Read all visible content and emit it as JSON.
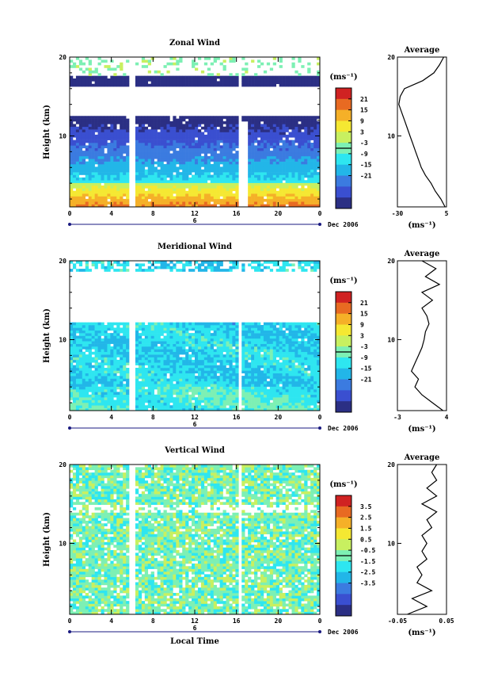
{
  "chart_data": [
    {
      "type": "heatmap",
      "title": "Zonal Wind",
      "ylabel": "Height (km)",
      "x_ticks": [
        "0",
        "4",
        "8",
        "12",
        "16",
        "20",
        "0"
      ],
      "y_ticks": [
        "10",
        "20"
      ],
      "date_label": "6",
      "date_right": "Dec 2006",
      "xlim": [
        0,
        24
      ],
      "ylim": [
        1,
        20
      ],
      "colorbar": {
        "unit": "(ms⁻¹)",
        "ticks": [
          "21",
          "15",
          "9",
          "3",
          "-3",
          "-9",
          "-15",
          "-21"
        ],
        "range": [
          -24,
          24
        ]
      },
      "profile": {
        "title": "Average",
        "unit": "(ms⁻¹)",
        "x_ticks": [
          "-30",
          "5"
        ],
        "xlim": [
          -30,
          5
        ],
        "y_ticks": [
          "10",
          "20"
        ],
        "heights": [
          1,
          2,
          3,
          4,
          5,
          6,
          7,
          8,
          9,
          10,
          11,
          12,
          13,
          14,
          15,
          16,
          17,
          18,
          19,
          20
        ],
        "values": [
          4,
          1,
          -3,
          -6,
          -10,
          -13,
          -15,
          -17,
          -19,
          -21,
          -23,
          -25,
          -27,
          -29,
          -28,
          -25,
          -12,
          -4,
          0,
          3
        ]
      }
    },
    {
      "type": "heatmap",
      "title": "Meridional Wind",
      "ylabel": "Height (km)",
      "x_ticks": [
        "0",
        "4",
        "8",
        "12",
        "16",
        "20",
        "0"
      ],
      "y_ticks": [
        "10",
        "20"
      ],
      "date_label": "6",
      "date_right": "Dec 2006",
      "xlim": [
        0,
        24
      ],
      "ylim": [
        1,
        20
      ],
      "colorbar": {
        "unit": "(ms⁻¹)",
        "ticks": [
          "21",
          "15",
          "9",
          "3",
          "-3",
          "-9",
          "-15",
          "-21"
        ],
        "range": [
          -24,
          24
        ]
      },
      "profile": {
        "title": "Average",
        "unit": "(ms⁻¹)",
        "x_ticks": [
          "-3",
          "4"
        ],
        "xlim": [
          -3,
          4
        ],
        "y_ticks": [
          "10",
          "20"
        ],
        "heights": [
          1,
          2,
          3,
          4,
          5,
          6,
          7,
          8,
          9,
          10,
          11,
          12,
          13,
          14,
          15,
          16,
          17,
          18,
          19,
          20
        ],
        "values": [
          3.5,
          2,
          0.5,
          -0.5,
          0,
          -1,
          -0.5,
          0,
          0.5,
          0.8,
          1,
          1.5,
          1.2,
          0.5,
          2,
          0.5,
          3,
          1,
          2.5,
          0.5
        ]
      }
    },
    {
      "type": "heatmap",
      "title": "Vertical Wind",
      "xlabel": "Local Time",
      "ylabel": "Height (km)",
      "x_ticks": [
        "0",
        "4",
        "8",
        "12",
        "16",
        "20",
        "0"
      ],
      "y_ticks": [
        "10",
        "20"
      ],
      "date_label": "6",
      "date_right": "Dec 2006",
      "xlim": [
        0,
        24
      ],
      "ylim": [
        1,
        20
      ],
      "colorbar": {
        "unit": "(ms⁻¹)",
        "ticks": [
          "3.5",
          "2.5",
          "1.5",
          "0.5",
          "-0.5",
          "-1.5",
          "-2.5",
          "-3.5"
        ],
        "range": [
          -4,
          4
        ]
      },
      "profile": {
        "title": "Average",
        "unit": "(ms⁻¹)",
        "x_ticks": [
          "-0.05",
          "0.05"
        ],
        "xlim": [
          -0.05,
          0.05
        ],
        "y_ticks": [
          "10",
          "20"
        ],
        "heights": [
          1,
          2,
          3,
          4,
          5,
          6,
          7,
          8,
          9,
          10,
          11,
          12,
          13,
          14,
          15,
          16,
          17,
          18,
          19,
          20
        ],
        "values": [
          -0.03,
          0.01,
          -0.02,
          0.02,
          -0.01,
          0.0,
          -0.01,
          0.01,
          0.0,
          0.01,
          0.0,
          0.02,
          0.01,
          0.03,
          0.0,
          0.03,
          0.01,
          0.03,
          0.02,
          0.03
        ]
      }
    }
  ],
  "colors": {
    "scale": [
      "#2b2f84",
      "#3a4fd0",
      "#3b7be0",
      "#22b6e8",
      "#2ee6f0",
      "#7df0b4",
      "#c8f060",
      "#f5e832",
      "#f5b028",
      "#e86a22",
      "#d02222"
    ]
  }
}
